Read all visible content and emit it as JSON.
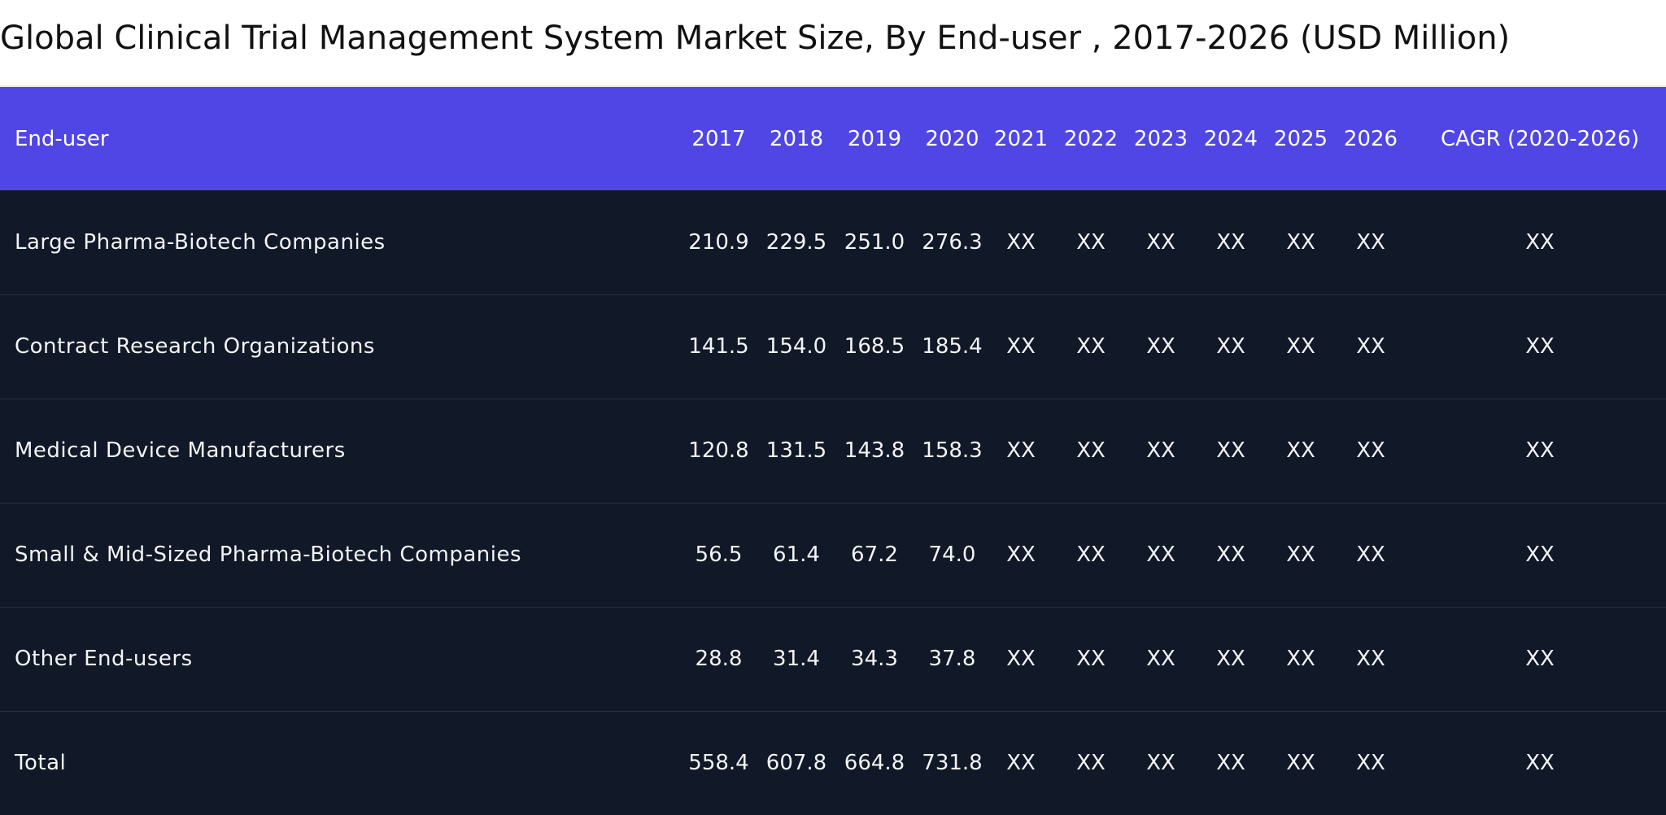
{
  "title": "Global Clinical Trial Management System Market Size, By End-user , 2017-2026 (USD Million)",
  "colors": {
    "header_bg": "#5046e5",
    "body_bg": "#111827",
    "row_divider": "#273244",
    "text": "#f3f4f6"
  },
  "chart_data": {
    "type": "table",
    "title": "Global Clinical Trial Management System Market Size, By End-user , 2017-2026 (USD Million)",
    "columns": [
      "End-user",
      "2017",
      "2018",
      "2019",
      "2020",
      "2021",
      "2022",
      "2023",
      "2024",
      "2025",
      "2026",
      "CAGR (2020-2026)"
    ],
    "rows": [
      [
        "Large Pharma-Biotech Companies",
        "210.9",
        "229.5",
        "251.0",
        "276.3",
        "XX",
        "XX",
        "XX",
        "XX",
        "XX",
        "XX",
        "XX"
      ],
      [
        "Contract Research Organizations",
        "141.5",
        "154.0",
        "168.5",
        "185.4",
        "XX",
        "XX",
        "XX",
        "XX",
        "XX",
        "XX",
        "XX"
      ],
      [
        "Medical Device Manufacturers",
        "120.8",
        "131.5",
        "143.8",
        "158.3",
        "XX",
        "XX",
        "XX",
        "XX",
        "XX",
        "XX",
        "XX"
      ],
      [
        "Small & Mid-Sized Pharma-Biotech Companies",
        "56.5",
        "61.4",
        "67.2",
        "74.0",
        "XX",
        "XX",
        "XX",
        "XX",
        "XX",
        "XX",
        "XX"
      ],
      [
        "Other End-users",
        "28.8",
        "31.4",
        "34.3",
        "37.8",
        "XX",
        "XX",
        "XX",
        "XX",
        "XX",
        "XX",
        "XX"
      ],
      [
        "Total",
        "558.4",
        "607.8",
        "664.8",
        "731.8",
        "XX",
        "XX",
        "XX",
        "XX",
        "XX",
        "XX",
        "XX"
      ]
    ]
  }
}
